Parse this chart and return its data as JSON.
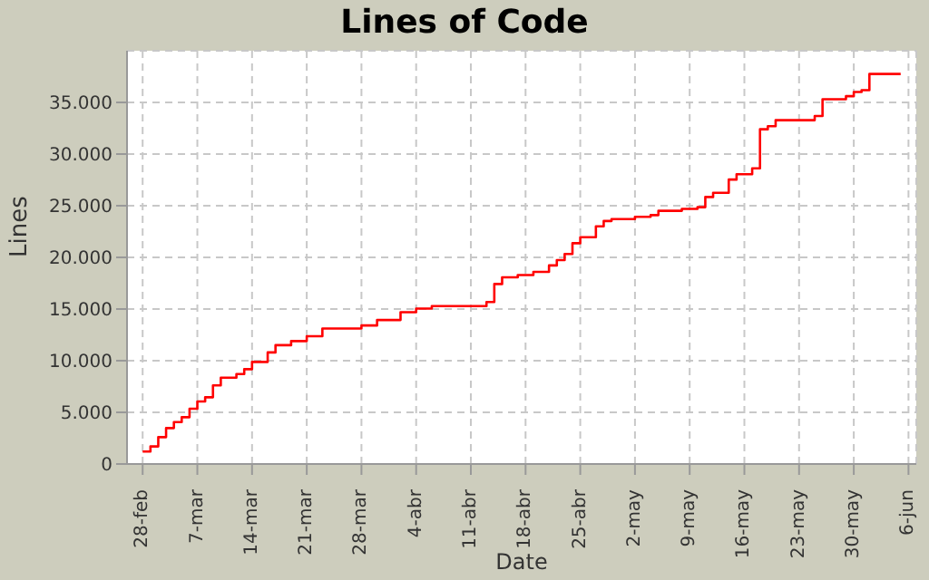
{
  "chart_data": {
    "type": "step",
    "title": "Lines of Code",
    "xlabel": "Date",
    "ylabel": "Lines",
    "x": [
      "--02-28",
      "--03-01",
      "--03-02",
      "--03-03",
      "--03-04",
      "--03-05",
      "--03-06",
      "--03-07",
      "--03-08",
      "--03-09",
      "--03-10",
      "--03-12",
      "--03-13",
      "--03-14",
      "--03-16",
      "--03-17",
      "--03-19",
      "--03-21",
      "--03-23",
      "--03-28",
      "--03-30",
      "--04-02",
      "--04-04",
      "--04-06",
      "--04-13",
      "--04-14",
      "--04-15",
      "--04-17",
      "--04-19",
      "--04-21",
      "--04-22",
      "--04-23",
      "--04-24",
      "--04-25",
      "--04-27",
      "--04-28",
      "--04-29",
      "--05-02",
      "--05-04",
      "--05-05",
      "--05-08",
      "--05-10",
      "--05-11",
      "--05-12",
      "--05-14",
      "--05-15",
      "--05-17",
      "--05-18",
      "--05-19",
      "--05-20",
      "--05-25",
      "--05-26",
      "--05-29",
      "--05-30",
      "--05-31",
      "--06-01",
      "--06-05"
    ],
    "series": [
      {
        "color": "#ff0000",
        "values": [
          1200,
          1700,
          2600,
          3480,
          4060,
          4530,
          5350,
          6050,
          6460,
          7610,
          8360,
          8710,
          9180,
          9880,
          10800,
          11500,
          11900,
          12370,
          13120,
          13410,
          13940,
          14690,
          15040,
          15280,
          15680,
          17420,
          18070,
          18290,
          18590,
          19220,
          19740,
          20330,
          21370,
          21950,
          23000,
          23520,
          23700,
          23920,
          24090,
          24510,
          24690,
          24860,
          25840,
          26250,
          27530,
          28050,
          28620,
          32400,
          32700,
          33280,
          33680,
          35310,
          35600,
          36010,
          36180,
          37750,
          37750
        ]
      }
    ],
    "xlim": [
      "--02-26",
      "--06-07"
    ],
    "xticks": [
      {
        "value": "--02-28",
        "label": "28-feb"
      },
      {
        "value": "--03-07",
        "label": "7-mar"
      },
      {
        "value": "--03-14",
        "label": "14-mar"
      },
      {
        "value": "--03-21",
        "label": "21-mar"
      },
      {
        "value": "--03-28",
        "label": "28-mar"
      },
      {
        "value": "--04-04",
        "label": "4-abr"
      },
      {
        "value": "--04-11",
        "label": "11-abr"
      },
      {
        "value": "--04-18",
        "label": "18-abr"
      },
      {
        "value": "--04-25",
        "label": "25-abr"
      },
      {
        "value": "--05-02",
        "label": "2-may"
      },
      {
        "value": "--05-09",
        "label": "9-may"
      },
      {
        "value": "--05-16",
        "label": "16-may"
      },
      {
        "value": "--05-23",
        "label": "23-may"
      },
      {
        "value": "--05-30",
        "label": "30-may"
      },
      {
        "value": "--06-06",
        "label": "6-jun"
      }
    ],
    "ylim": [
      0,
      40000
    ],
    "yticks": [
      0,
      {
        "value": 5000,
        "label": "5.000"
      },
      {
        "value": 10000,
        "label": "10.000"
      },
      {
        "value": 15000,
        "label": "15.000"
      },
      {
        "value": 20000,
        "label": "20.000"
      },
      {
        "value": 25000,
        "label": "25.000"
      },
      {
        "value": 30000,
        "label": "30.000"
      },
      {
        "value": 35000,
        "label": "35.000"
      }
    ],
    "grid": true,
    "legend": false,
    "marker": "none",
    "line_style": "solid"
  }
}
